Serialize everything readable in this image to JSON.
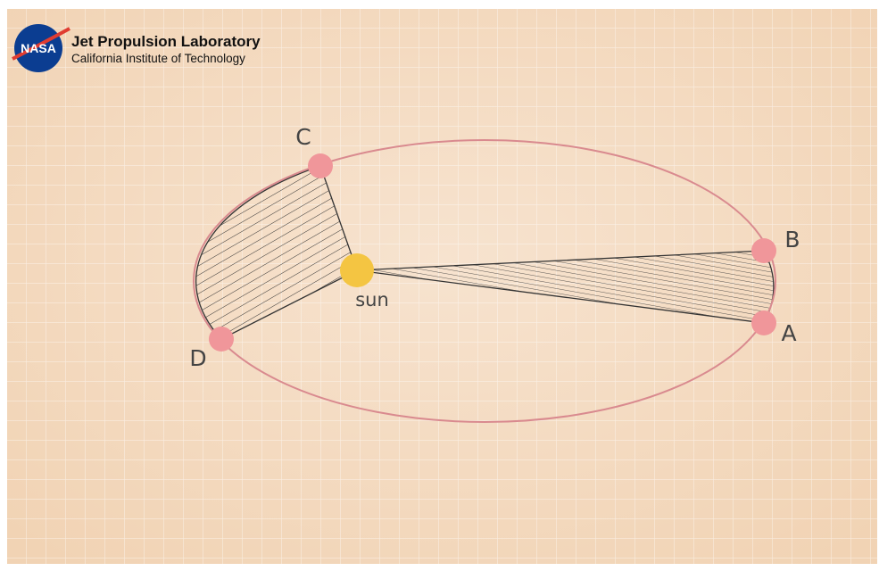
{
  "logo": {
    "agency": "NASA",
    "name": "Jet Propulsion Laboratory",
    "institute": "California Institute of Technology"
  },
  "diagram": {
    "sun": "sun",
    "points": {
      "a": "A",
      "b": "B",
      "c": "C",
      "d": "D"
    }
  }
}
